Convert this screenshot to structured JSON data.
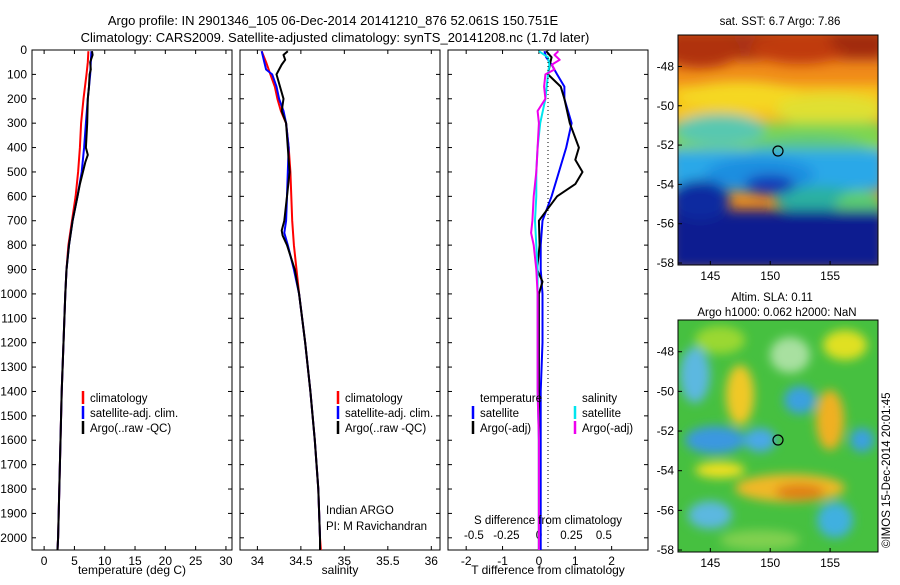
{
  "header": {
    "line1": "Argo profile: IN 2901346_105 06-Dec-2014 20141210_876 52.061S 150.751E",
    "line2": "Climatology: CARS2009. Satellite-adjusted climatology: synTS_20141208.nc (1.7d later)"
  },
  "colors": {
    "climatology": "#ff0000",
    "satellite_adj": "#0000ff",
    "argo": "#000000",
    "salinity_satellite": "#00e5ee",
    "salinity_argo": "#ee00ee"
  },
  "legend_profiles": [
    "climatology",
    "satellite-adj. clim.",
    "Argo(..raw -QC)"
  ],
  "legend_diff": {
    "temperature_header": "temperature",
    "salinity_header": "salinity",
    "satellite": "satellite",
    "argo_adj": "Argo(-adj)"
  },
  "annotation": {
    "line1": "Indian ARGO",
    "line2": "PI: M Ravichandran"
  },
  "map_top": {
    "title": "sat. SST: 6.7 Argo: 7.86",
    "x_ticks": [
      "145",
      "150",
      "155"
    ],
    "y_ticks": [
      "-48",
      "-50",
      "-52",
      "-54",
      "-56",
      "-58"
    ],
    "marker": {
      "lon": 150.751,
      "lat": -52.061
    }
  },
  "map_bottom": {
    "title_line1": "Altim. SLA: 0.11",
    "title_line2": "Argo h1000: 0.062 h2000: NaN",
    "x_ticks": [
      "145",
      "150",
      "155"
    ],
    "y_ticks": [
      "-48",
      "-50",
      "-52",
      "-54",
      "-56",
      "-58"
    ],
    "marker": {
      "lon": 150.751,
      "lat": -52.061
    }
  },
  "credit": "©IMOS 15-Dec-2014 20:01:45",
  "chart_data": [
    {
      "type": "line",
      "xlabel": "temperature (deg C)",
      "ylabel": "",
      "xlim": [
        -2,
        31
      ],
      "ylim": [
        2050,
        0
      ],
      "x_ticks": [
        "0",
        "5",
        "10",
        "15",
        "20",
        "25",
        "30"
      ],
      "y_ticks": [
        "0",
        "100",
        "200",
        "300",
        "400",
        "500",
        "600",
        "700",
        "800",
        "900",
        "1000",
        "1100",
        "1200",
        "1300",
        "1400",
        "1500",
        "1600",
        "1700",
        "1800",
        "1900",
        "2000"
      ],
      "series": [
        {
          "name": "climatology",
          "depth": [
            5,
            50,
            100,
            200,
            300,
            400,
            500,
            600,
            700,
            800,
            900,
            1000,
            1200,
            1400,
            1600,
            1800,
            2000,
            2050
          ],
          "values": [
            7.3,
            7.2,
            7.0,
            6.5,
            6.1,
            5.9,
            5.6,
            5.2,
            4.6,
            4.0,
            3.7,
            3.5,
            3.2,
            2.9,
            2.7,
            2.5,
            2.3,
            2.2
          ]
        },
        {
          "name": "satellite-adj. clim.",
          "depth": [
            5,
            50,
            100,
            200,
            300,
            400,
            500,
            600,
            700,
            800,
            900,
            1000,
            1200,
            1400,
            1600,
            1800,
            2000,
            2050
          ],
          "values": [
            7.8,
            7.7,
            7.6,
            7.2,
            6.9,
            6.6,
            6.2,
            5.5,
            4.7,
            4.1,
            3.7,
            3.5,
            3.2,
            2.9,
            2.7,
            2.5,
            2.3,
            2.2
          ]
        },
        {
          "name": "Argo(..raw -QC)",
          "depth": [
            5,
            20,
            50,
            80,
            100,
            150,
            200,
            300,
            400,
            430,
            460,
            500,
            550,
            600,
            700,
            800,
            900,
            1000,
            1200,
            1400,
            1600,
            1800,
            2000,
            2050
          ],
          "values": [
            7.9,
            8.0,
            7.6,
            7.7,
            7.5,
            7.4,
            7.2,
            7.1,
            6.9,
            7.2,
            6.8,
            6.4,
            5.9,
            5.5,
            4.7,
            4.1,
            3.7,
            3.5,
            3.2,
            2.9,
            2.7,
            2.5,
            2.3,
            2.2
          ]
        }
      ],
      "legend": [
        "climatology",
        "satellite-adj. clim.",
        "Argo(..raw -QC)"
      ]
    },
    {
      "type": "line",
      "xlabel": "salinity",
      "ylabel": "",
      "xlim": [
        33.8,
        36.1
      ],
      "ylim": [
        2050,
        0
      ],
      "x_ticks": [
        "34",
        "34.5",
        "35",
        "35.5",
        "36"
      ],
      "series": [
        {
          "name": "climatology",
          "depth": [
            5,
            50,
            100,
            150,
            200,
            250,
            300,
            400,
            500,
            600,
            700,
            800,
            900,
            1000,
            1200,
            1400,
            1600,
            1800,
            2000,
            2050
          ],
          "values": [
            34.05,
            34.1,
            34.15,
            34.2,
            34.23,
            34.27,
            34.33,
            34.36,
            34.38,
            34.39,
            34.4,
            34.42,
            34.45,
            34.48,
            34.55,
            34.61,
            34.66,
            34.7,
            34.72,
            34.73
          ]
        },
        {
          "name": "satellite-adj. clim.",
          "depth": [
            5,
            50,
            80,
            100,
            150,
            200,
            250,
            300,
            400,
            500,
            600,
            700,
            750,
            800,
            900,
            1000,
            1200,
            1400,
            1600,
            1800,
            2000,
            2050
          ],
          "values": [
            34.05,
            34.08,
            34.1,
            34.17,
            34.22,
            34.25,
            34.3,
            34.33,
            34.36,
            34.35,
            34.34,
            34.33,
            34.31,
            34.35,
            34.42,
            34.48,
            34.55,
            34.61,
            34.66,
            34.7,
            34.72,
            34.72
          ]
        },
        {
          "name": "Argo(..raw -QC)",
          "depth": [
            5,
            20,
            40,
            60,
            80,
            100,
            150,
            200,
            250,
            300,
            400,
            500,
            600,
            700,
            740,
            760,
            800,
            900,
            1000,
            1200,
            1400,
            1600,
            1800,
            2000,
            2050
          ],
          "values": [
            34.35,
            34.3,
            34.32,
            34.28,
            34.25,
            34.22,
            34.26,
            34.3,
            34.28,
            34.33,
            34.35,
            34.37,
            34.34,
            34.31,
            34.28,
            34.29,
            34.34,
            34.43,
            34.48,
            34.55,
            34.61,
            34.66,
            34.7,
            34.72,
            34.72
          ]
        }
      ],
      "legend": [
        "climatology",
        "satellite-adj. clim.",
        "Argo(..raw -QC)"
      ]
    },
    {
      "type": "line",
      "xlabel": "T difference from climatology",
      "xlabel_top": "S difference from climatology",
      "xlim": [
        -2.5,
        3.0
      ],
      "ylim": [
        2050,
        0
      ],
      "x_ticks": [
        "-2",
        "-1",
        "0",
        "1",
        "2"
      ],
      "x_ticks_top": [
        "-0.5",
        "-0.25",
        "0",
        "0.25",
        "0.5"
      ],
      "series": [
        {
          "name": "satellite",
          "variable": "temperature",
          "depth": [
            5,
            30,
            60,
            100,
            150,
            200,
            300,
            400,
            500,
            600,
            700,
            800,
            900,
            1000,
            1200,
            1400,
            1600,
            1800,
            2000,
            2050
          ],
          "values": [
            0.15,
            0.2,
            0.35,
            0.5,
            0.7,
            0.7,
            0.9,
            0.75,
            0.55,
            0.35,
            0.1,
            0.05,
            0.05,
            0.1,
            0.1,
            0.05,
            0.05,
            0.05,
            0.05,
            0.05
          ]
        },
        {
          "name": "Argo(-adj)",
          "variable": "temperature",
          "depth": [
            5,
            30,
            60,
            100,
            150,
            200,
            300,
            400,
            450,
            500,
            550,
            600,
            700,
            800,
            900,
            950,
            1000,
            1200,
            1400,
            1600,
            1800,
            2000,
            2050
          ],
          "values": [
            0.2,
            0.35,
            0.3,
            0.25,
            0.6,
            0.7,
            0.85,
            1.1,
            1.0,
            1.2,
            1.0,
            0.5,
            0.0,
            0.02,
            -0.05,
            0.1,
            0.0,
            0.0,
            0.0,
            0.0,
            0.0,
            0.0,
            0.0
          ]
        },
        {
          "name": "satellite",
          "variable": "salinity",
          "depth": [
            5,
            30,
            60,
            100,
            200,
            300,
            400,
            500,
            600,
            700,
            800,
            900,
            1000,
            1200,
            1400,
            1600,
            1800,
            2000,
            2050
          ],
          "values": [
            0.0,
            0.07,
            0.08,
            0.07,
            0.05,
            0.01,
            -0.01,
            -0.02,
            -0.02,
            -0.03,
            -0.02,
            -0.01,
            -0.01,
            -0.01,
            -0.01,
            0.0,
            0.0,
            0.0,
            0.0
          ]
        },
        {
          "name": "Argo(-adj)",
          "variable": "salinity",
          "depth": [
            5,
            20,
            40,
            60,
            80,
            100,
            150,
            200,
            250,
            300,
            400,
            500,
            600,
            700,
            750,
            800,
            900,
            1000,
            1200,
            1400,
            1600,
            1800,
            2000,
            2050
          ],
          "values": [
            0.15,
            0.12,
            0.16,
            0.1,
            0.12,
            0.05,
            0.04,
            0.05,
            -0.01,
            0.0,
            -0.01,
            -0.02,
            -0.04,
            -0.05,
            -0.06,
            -0.04,
            -0.02,
            -0.01,
            -0.01,
            -0.01,
            0.0,
            0.0,
            0.0,
            0.0
          ]
        }
      ],
      "legend": [
        "temperature satellite",
        "temperature Argo(-adj)",
        "salinity satellite",
        "salinity Argo(-adj)"
      ]
    }
  ]
}
